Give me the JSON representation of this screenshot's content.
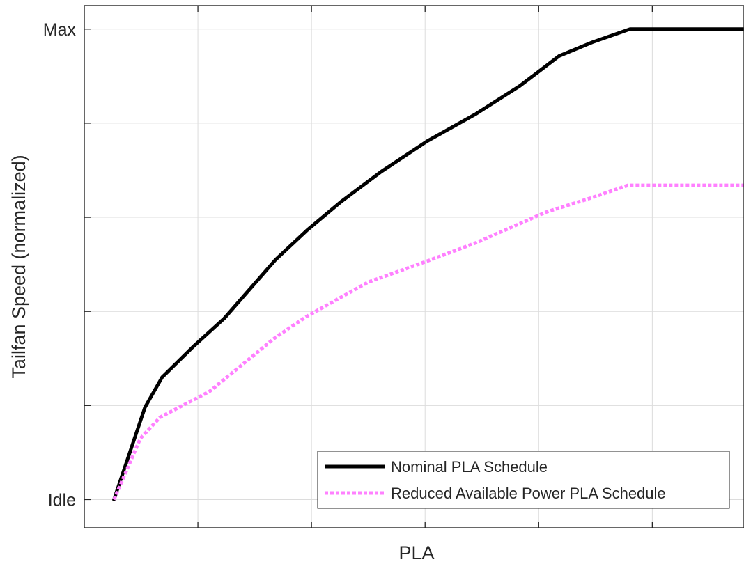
{
  "chart_data": {
    "type": "line",
    "title": "",
    "xlabel": "PLA",
    "ylabel": "Tailfan Speed (normalized)",
    "xlim": [
      0,
      1
    ],
    "ylim": [
      -0.06,
      1.05
    ],
    "grid": true,
    "x_ticks": [
      0.1722,
      0.3444,
      0.5166,
      0.6888,
      0.861
    ],
    "y_ticks": [
      {
        "value": 0,
        "label": "Idle"
      },
      {
        "value": 0.2,
        "label": ""
      },
      {
        "value": 0.4,
        "label": ""
      },
      {
        "value": 0.6,
        "label": ""
      },
      {
        "value": 0.8,
        "label": ""
      },
      {
        "value": 1,
        "label": "Max"
      }
    ],
    "legend": {
      "position": "bottom-right"
    },
    "series": [
      {
        "name": "Nominal PLA Schedule",
        "color": "#000000",
        "style": "solid",
        "x": [
          0.045,
          0.092,
          0.118,
          0.165,
          0.212,
          0.29,
          0.338,
          0.39,
          0.45,
          0.52,
          0.594,
          0.66,
          0.72,
          0.77,
          0.827,
          0.85,
          1.0
        ],
        "y": [
          0,
          0.196,
          0.26,
          0.325,
          0.385,
          0.51,
          0.573,
          0.634,
          0.697,
          0.762,
          0.82,
          0.879,
          0.943,
          0.972,
          1.0,
          1.0,
          1.0
        ]
      },
      {
        "name": "Reduced Available Power PLA Schedule",
        "color": "#ff80ff",
        "style": "dotted",
        "x": [
          0.045,
          0.085,
          0.115,
          0.19,
          0.29,
          0.338,
          0.43,
          0.52,
          0.594,
          0.7,
          0.77,
          0.824,
          1.0
        ],
        "y": [
          0,
          0.13,
          0.175,
          0.23,
          0.345,
          0.39,
          0.462,
          0.507,
          0.546,
          0.611,
          0.642,
          0.668,
          0.668
        ]
      }
    ]
  }
}
